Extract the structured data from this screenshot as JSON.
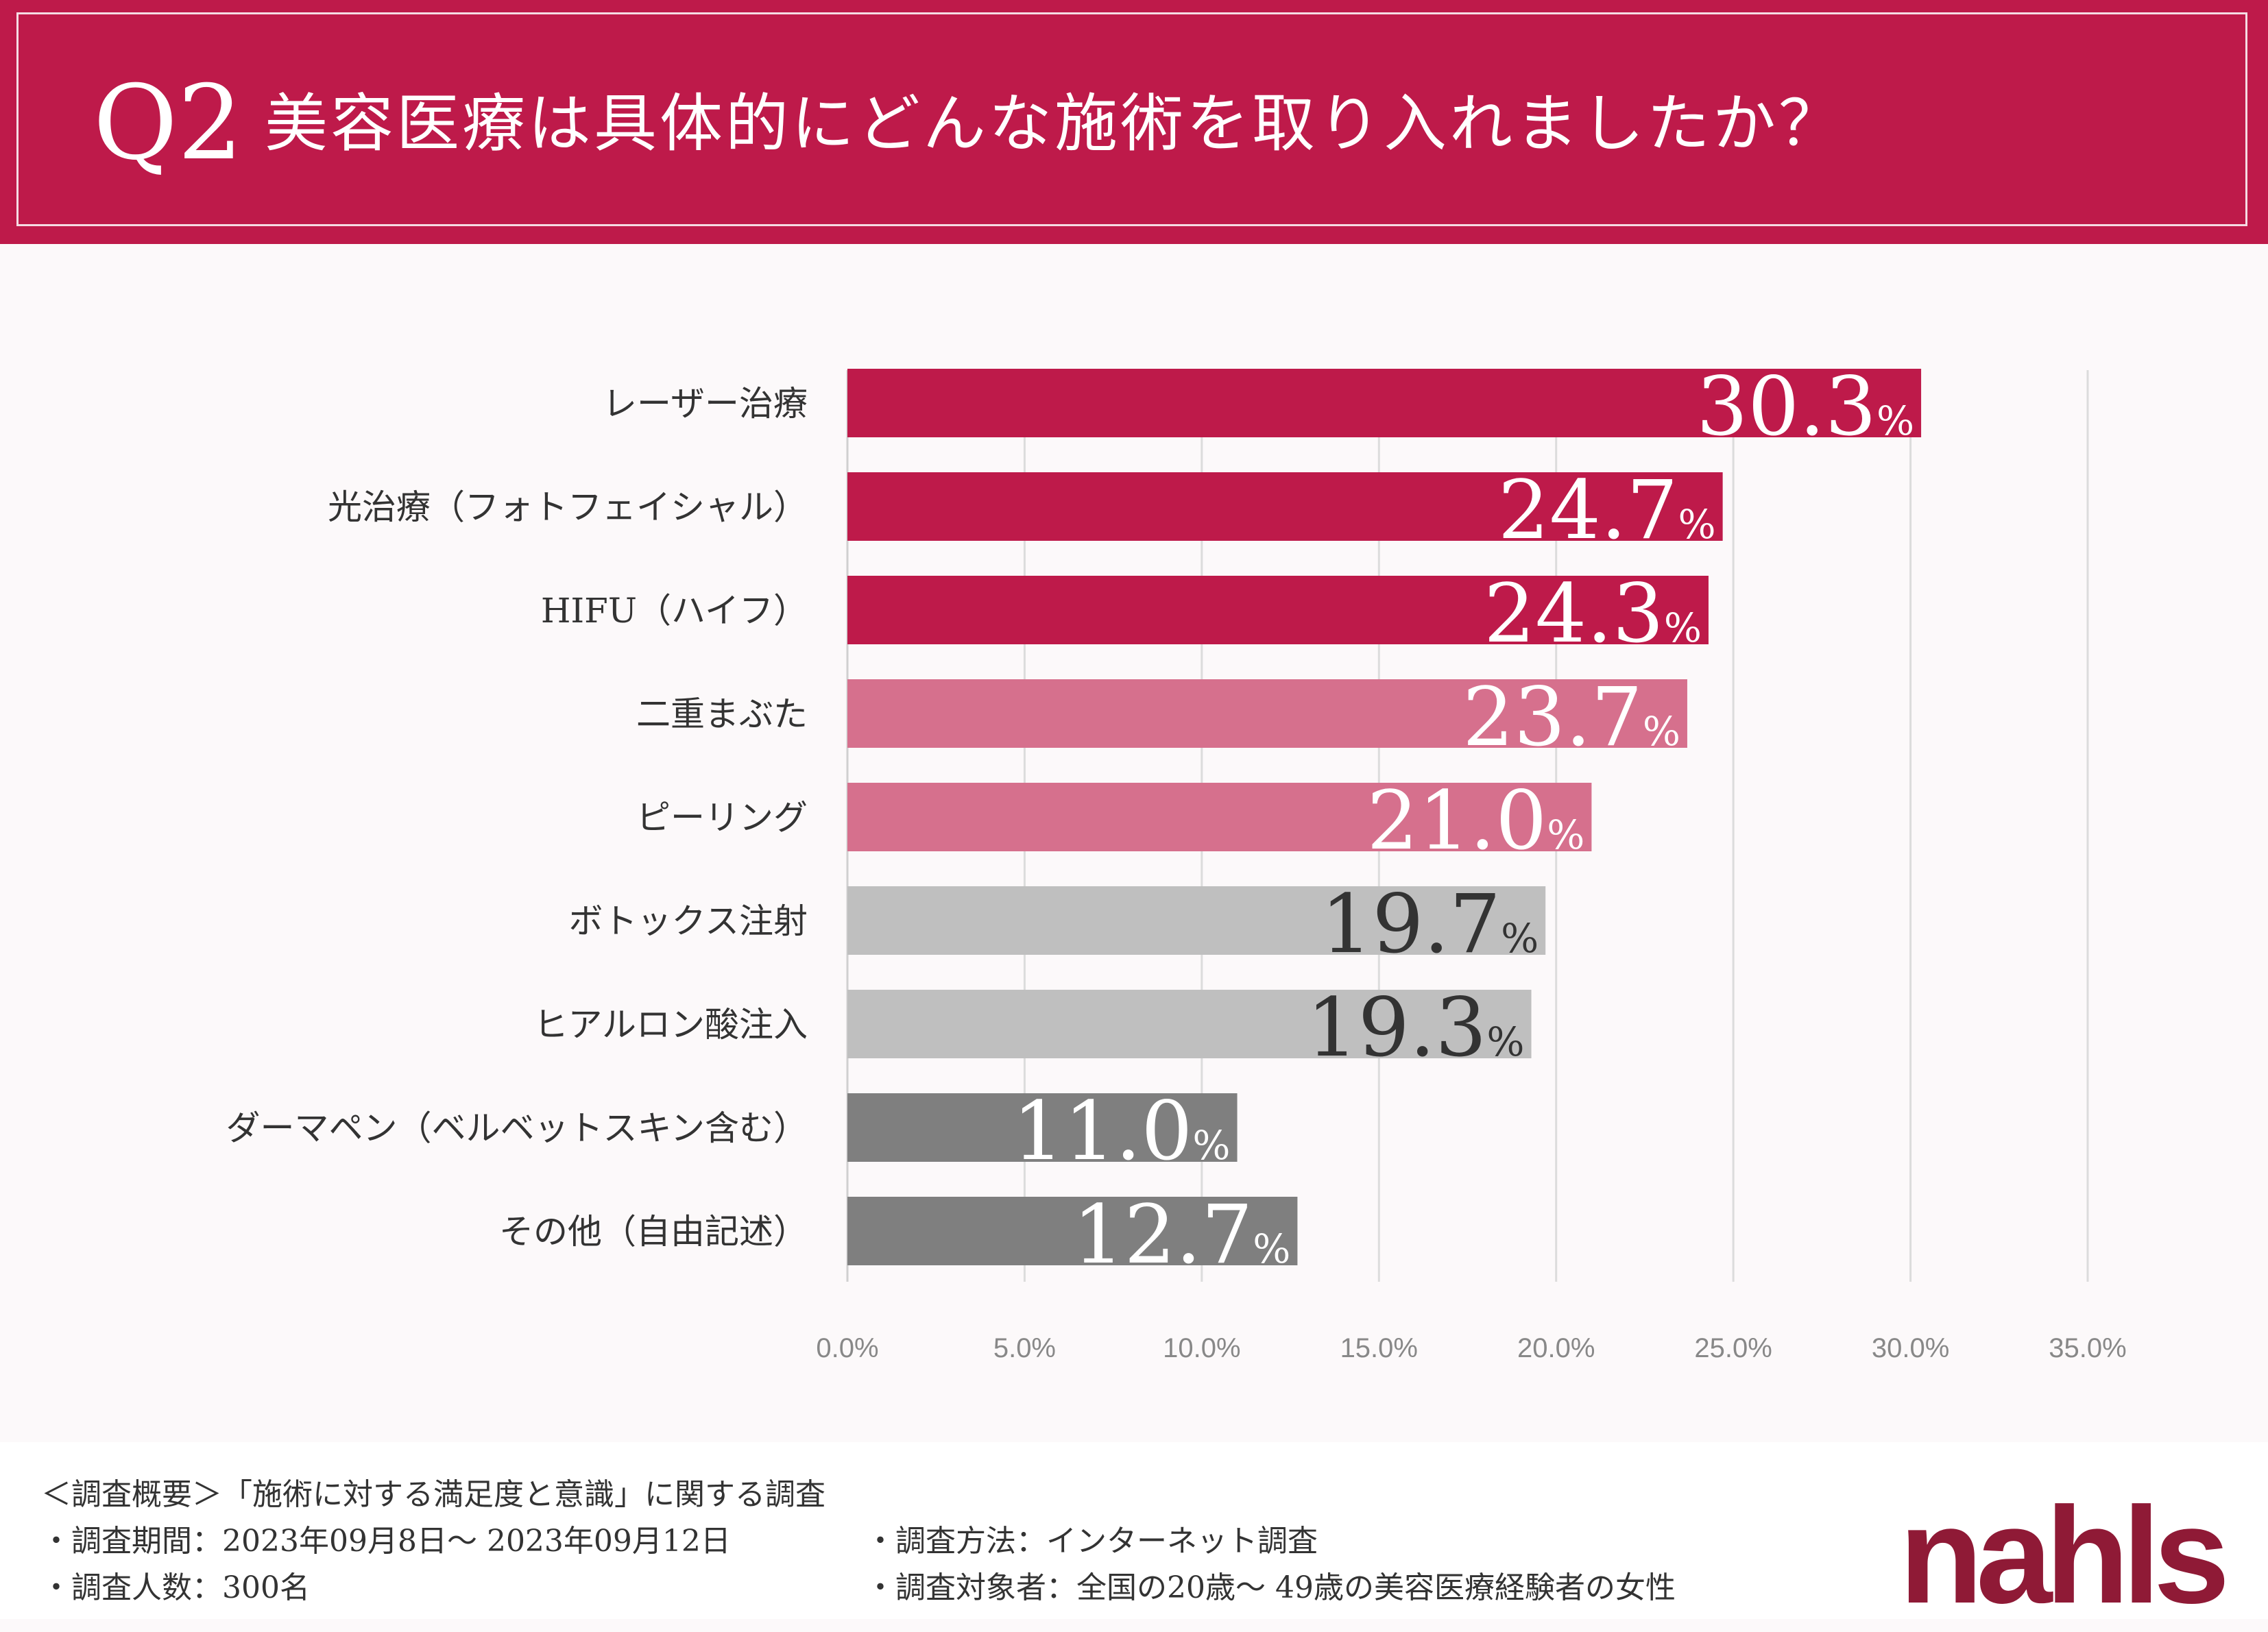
{
  "header": {
    "q_label": "Q2",
    "title": "美容医療は具体的にどんな施術を取り入れましたか？"
  },
  "chart_data": {
    "type": "bar",
    "orientation": "horizontal",
    "title": "美容医療は具体的にどんな施術を取り入れましたか？",
    "categories": [
      "レーザー治療",
      "光治療（フォトフェイシャル）",
      "HIFU（ハイフ）",
      "二重まぶた",
      "ピーリング",
      "ボトックス注射",
      "ヒアルロン酸注入",
      "ダーマペン（ベルベットスキン含む）",
      "その他（自由記述）"
    ],
    "values": [
      30.3,
      24.7,
      24.3,
      23.7,
      21.0,
      19.7,
      19.3,
      11.0,
      12.7
    ],
    "value_labels": [
      "30.3",
      "24.7",
      "24.3",
      "23.7",
      "21.0",
      "19.7",
      "19.3",
      "11.0",
      "12.7"
    ],
    "unit": "%",
    "xlim": [
      0,
      35
    ],
    "x_ticks": [
      0,
      5,
      10,
      15,
      20,
      25,
      30,
      35
    ],
    "x_tick_labels": [
      "0.0%",
      "5.0%",
      "10.0%",
      "15.0%",
      "20.0%",
      "25.0%",
      "30.0%",
      "35.0%"
    ],
    "grid": true,
    "colors": [
      "#be1a4a",
      "#be1a4a",
      "#be1a4a",
      "#d6708d",
      "#d6708d",
      "#bfbfbf",
      "#bfbfbf",
      "#7f7f7f",
      "#7f7f7f"
    ],
    "label_colors": [
      "#ffffff",
      "#ffffff",
      "#ffffff",
      "#ffffff",
      "#ffffff",
      "#333333",
      "#333333",
      "#ffffff",
      "#ffffff"
    ]
  },
  "footer": {
    "summary": "＜調査概要＞「施術に対する満足度と意識」に関する調査",
    "period": "・調査期間：2023年09月8日～ 2023年09月12日",
    "count": "・調査人数：300名",
    "method": "・調査方法：インターネット調査",
    "target": "・調査対象者：全国の20歳～ 49歳の美容医療経験者の女性",
    "logo": "nahls"
  }
}
